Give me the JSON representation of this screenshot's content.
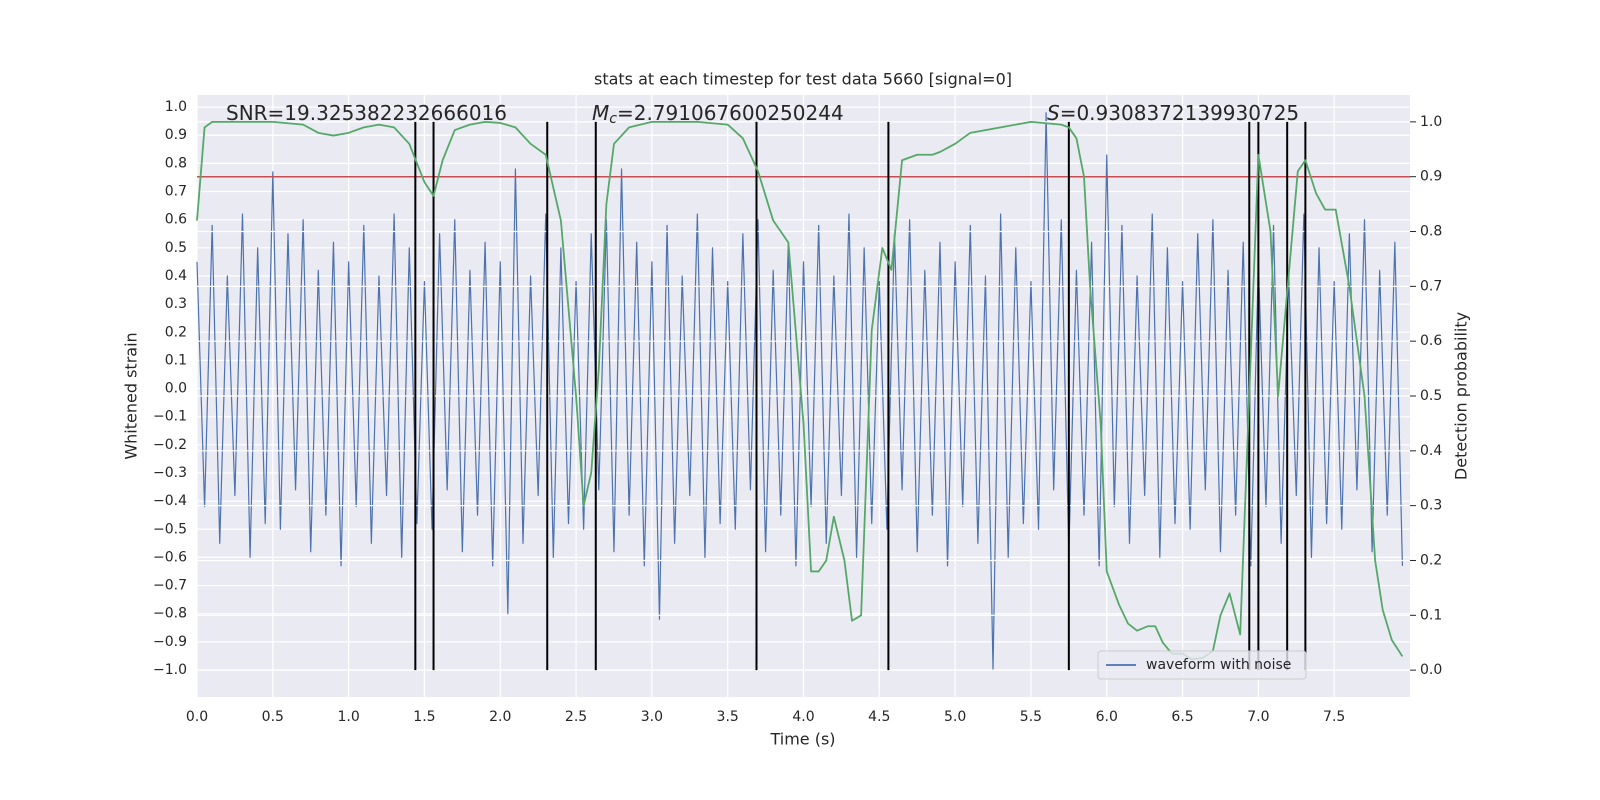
{
  "chart_data": {
    "type": "line",
    "title": "stats at each timestep for test data 5660 [signal=0]",
    "x_label": "Time (s)",
    "y_label": "Whitened strain",
    "y2_label": "Detection probability",
    "xlim": [
      0,
      8
    ],
    "ylim": [
      -1.096,
      1.043
    ],
    "y2lim": [
      -0.049,
      1.049
    ],
    "xticks": [
      {
        "value": 0,
        "label": "0.0"
      },
      {
        "value": 0.5,
        "label": "0.5"
      },
      {
        "value": 1,
        "label": "1.0"
      },
      {
        "value": 1.5,
        "label": "1.5"
      },
      {
        "value": 2,
        "label": "2.0"
      },
      {
        "value": 2.5,
        "label": "2.5"
      },
      {
        "value": 3,
        "label": "3.0"
      },
      {
        "value": 3.5,
        "label": "3.5"
      },
      {
        "value": 4,
        "label": "4.0"
      },
      {
        "value": 4.5,
        "label": "4.5"
      },
      {
        "value": 5,
        "label": "5.0"
      },
      {
        "value": 5.5,
        "label": "5.5"
      },
      {
        "value": 6,
        "label": "6.0"
      },
      {
        "value": 6.5,
        "label": "6.5"
      },
      {
        "value": 7,
        "label": "7.0"
      },
      {
        "value": 7.5,
        "label": "7.5"
      }
    ],
    "yticks": [
      {
        "value": -1,
        "label": "−1.0"
      },
      {
        "value": -0.9,
        "label": "−0.9"
      },
      {
        "value": -0.8,
        "label": "−0.8"
      },
      {
        "value": -0.7,
        "label": "−0.7"
      },
      {
        "value": -0.6,
        "label": "−0.6"
      },
      {
        "value": -0.5,
        "label": "−0.5"
      },
      {
        "value": -0.4,
        "label": "−0.4"
      },
      {
        "value": -0.3,
        "label": "−0.3"
      },
      {
        "value": -0.2,
        "label": "−0.2"
      },
      {
        "value": -0.1,
        "label": "−0.1"
      },
      {
        "value": 0,
        "label": "0.0"
      },
      {
        "value": 0.1,
        "label": "0.1"
      },
      {
        "value": 0.2,
        "label": "0.2"
      },
      {
        "value": 0.3,
        "label": "0.3"
      },
      {
        "value": 0.4,
        "label": "0.4"
      },
      {
        "value": 0.5,
        "label": "0.5"
      },
      {
        "value": 0.6,
        "label": "0.6"
      },
      {
        "value": 0.7,
        "label": "0.7"
      },
      {
        "value": 0.8,
        "label": "0.8"
      },
      {
        "value": 0.9,
        "label": "0.9"
      },
      {
        "value": 1,
        "label": "1.0"
      }
    ],
    "y2ticks": [
      {
        "value": 0,
        "label": "0.0"
      },
      {
        "value": 0.1,
        "label": "0.1"
      },
      {
        "value": 0.2,
        "label": "0.2"
      },
      {
        "value": 0.3,
        "label": "0.3"
      },
      {
        "value": 0.4,
        "label": "0.4"
      },
      {
        "value": 0.5,
        "label": "0.5"
      },
      {
        "value": 0.6,
        "label": "0.6"
      },
      {
        "value": 0.7,
        "label": "0.7"
      },
      {
        "value": 0.8,
        "label": "0.8"
      },
      {
        "value": 0.9,
        "label": "0.9"
      },
      {
        "value": 1,
        "label": "1.0"
      }
    ],
    "grid": true,
    "legend": "lower right",
    "series": [
      {
        "name": "waveform with noise",
        "color": "#4c72b0",
        "x": [
          0,
          0.05,
          0.1,
          0.15,
          0.2,
          0.25,
          0.3,
          0.35,
          0.4,
          0.45,
          0.5,
          0.55,
          0.6,
          0.65,
          0.7,
          0.75,
          0.8,
          0.85,
          0.9,
          0.95,
          1,
          1.05,
          1.1,
          1.15,
          1.2,
          1.25,
          1.3,
          1.35,
          1.4,
          1.45,
          1.5,
          1.55,
          1.6,
          1.65,
          1.7,
          1.75,
          1.8,
          1.85,
          1.9,
          1.95,
          2,
          2.05,
          2.1,
          2.15,
          2.2,
          2.25,
          2.3,
          2.35,
          2.4,
          2.45,
          2.5,
          2.55,
          2.6,
          2.65,
          2.7,
          2.75,
          2.8,
          2.85,
          2.9,
          2.95,
          3,
          3.05,
          3.1,
          3.15,
          3.2,
          3.25,
          3.3,
          3.35,
          3.4,
          3.45,
          3.5,
          3.55,
          3.6,
          3.65,
          3.7,
          3.75,
          3.8,
          3.85,
          3.9,
          3.95,
          4,
          4.05,
          4.1,
          4.15,
          4.2,
          4.25,
          4.3,
          4.35,
          4.4,
          4.45,
          4.5,
          4.55,
          4.6,
          4.65,
          4.7,
          4.75,
          4.8,
          4.85,
          4.9,
          4.95,
          5,
          5.05,
          5.1,
          5.15,
          5.2,
          5.25,
          5.3,
          5.35,
          5.4,
          5.45,
          5.5,
          5.55,
          5.6,
          5.65,
          5.7,
          5.75,
          5.8,
          5.85,
          5.9,
          5.95,
          6,
          6.05,
          6.1,
          6.15,
          6.2,
          6.25,
          6.3,
          6.35,
          6.4,
          6.45,
          6.5,
          6.55,
          6.6,
          6.65,
          6.7,
          6.75,
          6.8,
          6.85,
          6.9,
          6.95,
          7,
          7.05,
          7.1,
          7.15,
          7.2,
          7.25,
          7.3,
          7.35,
          7.4,
          7.45,
          7.5,
          7.55,
          7.6,
          7.65,
          7.7,
          7.75,
          7.8,
          7.85,
          7.9,
          7.95
        ],
        "values": [
          0.45,
          -0.42,
          0.58,
          -0.55,
          0.4,
          -0.38,
          0.62,
          -0.6,
          0.5,
          -0.48,
          0.77,
          -0.5,
          0.55,
          -0.36,
          0.6,
          -0.58,
          0.42,
          -0.45,
          0.52,
          -0.63,
          0.45,
          -0.42,
          0.58,
          -0.55,
          0.4,
          -0.38,
          0.62,
          -0.6,
          0.5,
          -0.48,
          0.38,
          -0.5,
          0.55,
          -0.36,
          0.6,
          -0.58,
          0.42,
          -0.45,
          0.52,
          -0.63,
          0.45,
          -0.8,
          0.78,
          -0.55,
          0.4,
          -0.38,
          0.62,
          -0.6,
          0.5,
          -0.48,
          0.38,
          -0.5,
          0.55,
          -0.36,
          0.6,
          -0.58,
          0.78,
          -0.45,
          0.52,
          -0.63,
          0.45,
          -0.82,
          0.58,
          -0.55,
          0.4,
          -0.38,
          0.62,
          -0.6,
          0.5,
          -0.48,
          0.38,
          -0.5,
          0.55,
          -0.36,
          0.6,
          -0.58,
          0.42,
          -0.45,
          0.52,
          -0.63,
          0.45,
          -0.42,
          0.58,
          -0.55,
          0.4,
          -0.38,
          0.62,
          -0.6,
          0.5,
          -0.48,
          0.38,
          -0.5,
          0.55,
          -0.36,
          0.6,
          -0.58,
          0.42,
          -0.45,
          0.52,
          -0.63,
          0.45,
          -0.42,
          0.58,
          -0.55,
          0.4,
          -1.0,
          0.62,
          -0.6,
          0.5,
          -0.48,
          0.38,
          -0.5,
          0.98,
          -0.36,
          0.6,
          -0.58,
          0.42,
          -0.45,
          0.52,
          -0.63,
          0.83,
          -0.42,
          0.58,
          -0.55,
          0.4,
          -0.38,
          0.62,
          -0.6,
          0.5,
          -0.48,
          0.38,
          -0.5,
          0.55,
          -0.36,
          0.6,
          -0.58,
          0.42,
          -0.45,
          0.52,
          -0.63,
          0.45,
          -0.42,
          0.58,
          -0.55,
          0.4,
          -0.38,
          0.62,
          -0.6,
          0.5,
          -0.48,
          0.38,
          -0.5,
          0.55,
          -0.36,
          0.6,
          -0.58,
          0.42,
          -0.45,
          0.52,
          -0.63
        ]
      },
      {
        "axis": "y2",
        "color": "#55a868",
        "x": [
          0,
          0.05,
          0.1,
          0.2,
          0.5,
          0.7,
          0.8,
          0.9,
          1.0,
          1.1,
          1.2,
          1.3,
          1.4,
          1.5,
          1.56,
          1.62,
          1.7,
          1.8,
          1.9,
          2.0,
          2.1,
          2.2,
          2.3,
          2.4,
          2.5,
          2.55,
          2.6,
          2.65,
          2.7,
          2.75,
          2.85,
          3.0,
          3.3,
          3.5,
          3.6,
          3.7,
          3.8,
          3.9,
          4.0,
          4.05,
          4.1,
          4.15,
          4.2,
          4.27,
          4.32,
          4.38,
          4.45,
          4.52,
          4.58,
          4.65,
          4.75,
          4.85,
          4.9,
          5.0,
          5.1,
          5.2,
          5.3,
          5.5,
          5.7,
          5.75,
          5.8,
          5.85,
          5.89,
          5.96,
          6.0,
          6.08,
          6.14,
          6.2,
          6.27,
          6.32,
          6.37,
          6.43,
          6.5,
          6.56,
          6.63,
          6.7,
          6.75,
          6.81,
          6.88,
          7.0,
          7.08,
          7.13,
          7.26,
          7.31,
          7.38,
          7.44,
          7.51,
          7.6,
          7.7,
          7.77,
          7.82,
          7.88,
          7.95
        ],
        "values": [
          0.82,
          0.99,
          1.0,
          1.0,
          1.0,
          0.995,
          0.98,
          0.975,
          0.98,
          0.99,
          0.995,
          0.99,
          0.96,
          0.89,
          0.865,
          0.93,
          0.985,
          0.995,
          1.0,
          0.998,
          0.99,
          0.96,
          0.94,
          0.82,
          0.5,
          0.3,
          0.36,
          0.55,
          0.85,
          0.96,
          0.99,
          1.0,
          1.0,
          0.995,
          0.97,
          0.91,
          0.82,
          0.78,
          0.45,
          0.18,
          0.18,
          0.2,
          0.28,
          0.2,
          0.09,
          0.1,
          0.62,
          0.77,
          0.73,
          0.93,
          0.94,
          0.94,
          0.945,
          0.96,
          0.98,
          0.985,
          0.99,
          1.0,
          0.995,
          0.99,
          0.97,
          0.9,
          0.7,
          0.45,
          0.18,
          0.12,
          0.085,
          0.072,
          0.08,
          0.08,
          0.05,
          0.03,
          0.03,
          0.02,
          0.022,
          0.035,
          0.1,
          0.14,
          0.065,
          0.94,
          0.8,
          0.5,
          0.91,
          0.93,
          0.87,
          0.84,
          0.84,
          0.7,
          0.5,
          0.2,
          0.11,
          0.055,
          0.025
        ]
      }
    ],
    "threshold_line": {
      "value": 0.9,
      "axis": "y2",
      "color": "#c44e52"
    },
    "vertical_lines": {
      "x": [
        1.44,
        1.56,
        2.31,
        2.63,
        3.69,
        4.56,
        5.75,
        6.94,
        7.0,
        7.19,
        7.31
      ],
      "y2_range": [
        0,
        1
      ],
      "color": "#000000"
    },
    "annotations": [
      {
        "text": "SNR=19.325382232666016"
      },
      {
        "symbol": "M",
        "subscript": "c",
        "text": "=2.791067600250244"
      },
      {
        "symbol": "S",
        "text": "=0.9308372139930725"
      }
    ]
  }
}
